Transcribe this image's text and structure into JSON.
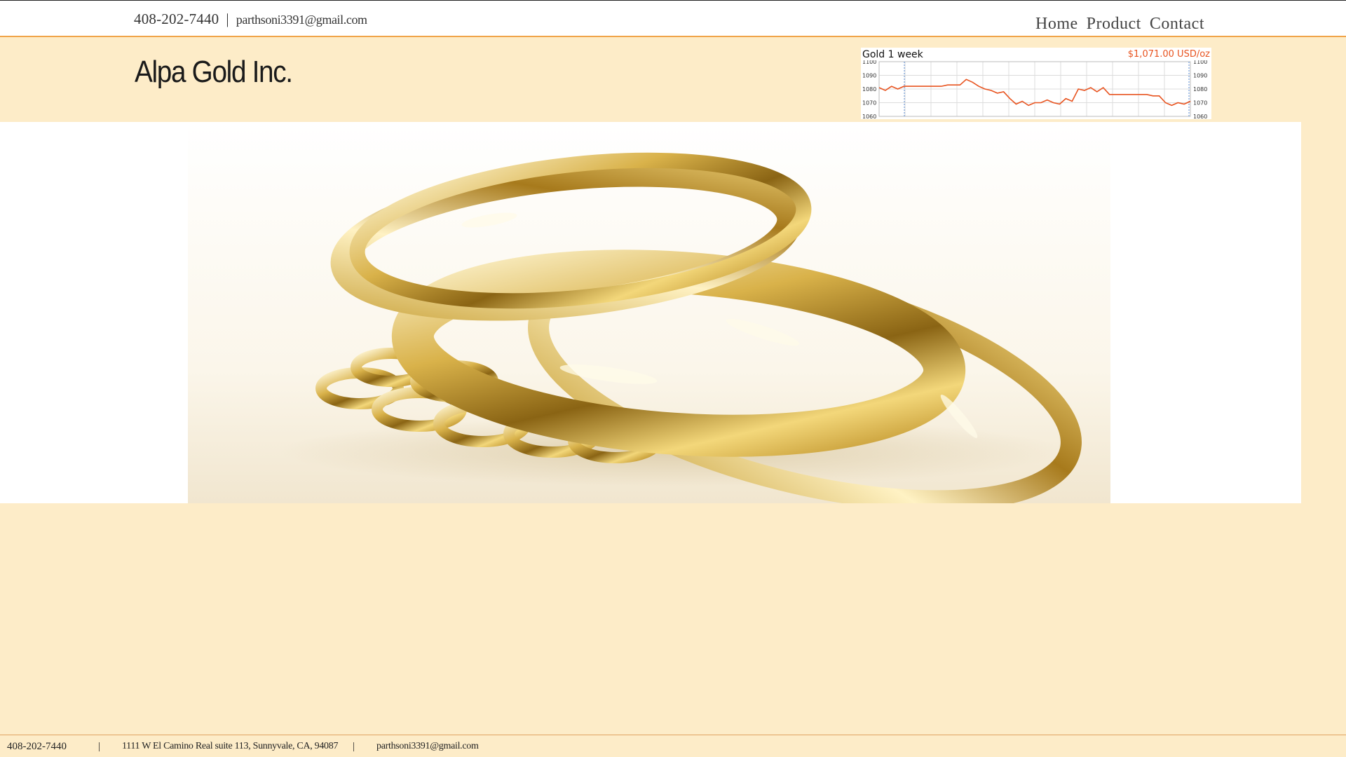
{
  "header": {
    "phone": "408-202-7440",
    "separator": "|",
    "email": "parthsoni3391@gmail.com",
    "nav": [
      "Home",
      "Product",
      "Contact"
    ]
  },
  "brand": {
    "name": "Alpa Gold Inc."
  },
  "gold_widget": {
    "title": "Gold 1 week",
    "price": "$1,071.00 USD/oz",
    "accent_color": "#e8531f",
    "chart_data": {
      "type": "line",
      "y_ticks": [
        "1100",
        "1090",
        "1080",
        "1070",
        "1060"
      ],
      "ylim": [
        1060,
        1100
      ],
      "series": [
        {
          "values": [
            1081,
            1079,
            1082,
            1080,
            1082,
            1082,
            1082,
            1082,
            1082,
            1082,
            1082,
            1083,
            1083,
            1083,
            1087,
            1085,
            1082,
            1080,
            1079,
            1077,
            1078,
            1073,
            1069,
            1071,
            1068,
            1070,
            1070,
            1072,
            1070,
            1069,
            1073,
            1071,
            1080,
            1079,
            1081,
            1078,
            1081,
            1076,
            1076,
            1076,
            1076,
            1076,
            1076,
            1076,
            1075,
            1075,
            1070,
            1068,
            1070,
            1069,
            1071
          ]
        }
      ]
    }
  },
  "footer": {
    "phone": "408-202-7440",
    "separator": "|",
    "address": "1111 W El Camino Real suite 113, Sunnyvale, CA, 94087",
    "email": "parthsoni3391@gmail.com"
  }
}
